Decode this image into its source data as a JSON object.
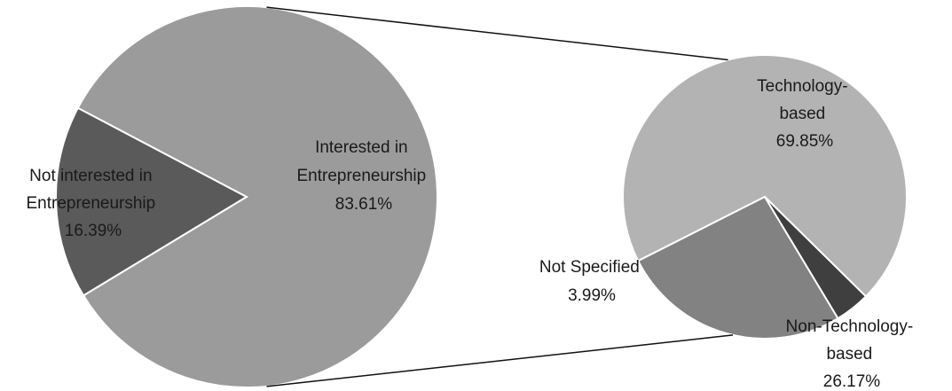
{
  "chart_data": [
    {
      "type": "pie",
      "slices": [
        {
          "name": "Not interested in Entrepreneurship",
          "label_lines": [
            "Not interested in",
            "Entrepreneurship",
            "16.39%"
          ],
          "value": 16.39,
          "color": "#5a5a5a"
        },
        {
          "name": "Interested in Entrepreneurship",
          "label_lines": [
            "Interested in",
            "Entrepreneurship",
            "83.61%"
          ],
          "value": 83.61,
          "color": "#9b9b9b"
        }
      ]
    },
    {
      "type": "pie",
      "slices": [
        {
          "name": "Technology-based",
          "label_lines": [
            "Technology-",
            "based",
            "69.85%"
          ],
          "value": 69.85,
          "color": "#b3b3b3"
        },
        {
          "name": "Non-Technology-based",
          "label_lines": [
            "Non-Technology-",
            "based",
            "26.17%"
          ],
          "value": 26.17,
          "color": "#828282"
        },
        {
          "name": "Not Specified",
          "label_lines": [
            "Not Specified",
            "3.99%"
          ],
          "value": 3.99,
          "color": "#3f3f3f"
        }
      ]
    }
  ]
}
